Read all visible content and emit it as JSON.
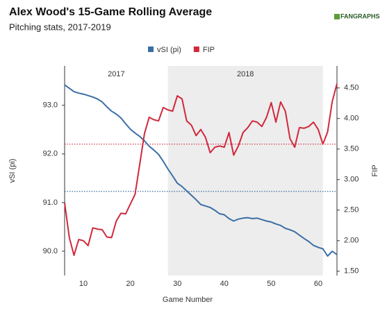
{
  "chart_data": {
    "type": "line",
    "title": "Alex Wood's 15-Game Rolling Average",
    "subtitle": "Pitching stats, 2017-2019",
    "logo_text": "FANGRAPHS",
    "xlabel": "Game Number",
    "ylabel": "vSI (pi)",
    "y2label": "FIP",
    "x": [
      6,
      7,
      8,
      9,
      10,
      11,
      12,
      13,
      14,
      15,
      16,
      17,
      18,
      19,
      20,
      21,
      22,
      23,
      24,
      25,
      26,
      27,
      28,
      29,
      30,
      31,
      32,
      33,
      34,
      35,
      36,
      37,
      38,
      39,
      40,
      41,
      42,
      43,
      44,
      45,
      46,
      47,
      48,
      49,
      50,
      51,
      52,
      53,
      54,
      55,
      56,
      57,
      58,
      59,
      60,
      61,
      62,
      63,
      64
    ],
    "series": [
      {
        "name": "vSI (pi)",
        "color": "#3a6ea5",
        "axis": "y",
        "values": [
          93.42,
          93.35,
          93.28,
          93.25,
          93.23,
          93.2,
          93.17,
          93.13,
          93.07,
          92.97,
          92.88,
          92.82,
          92.74,
          92.62,
          92.51,
          92.43,
          92.36,
          92.27,
          92.16,
          92.08,
          91.99,
          91.85,
          91.69,
          91.55,
          91.4,
          91.33,
          91.24,
          91.15,
          91.06,
          90.96,
          90.93,
          90.9,
          90.84,
          90.77,
          90.75,
          90.67,
          90.62,
          90.66,
          90.68,
          90.69,
          90.67,
          90.68,
          90.65,
          90.62,
          90.6,
          90.56,
          90.53,
          90.47,
          90.44,
          90.4,
          90.33,
          90.26,
          90.2,
          90.12,
          90.08,
          90.05,
          89.9,
          90.0,
          89.93
        ]
      },
      {
        "name": "FIP",
        "color": "#d0283b",
        "axis": "y2",
        "values": [
          2.62,
          2.05,
          1.76,
          2.02,
          2.0,
          1.92,
          2.21,
          2.19,
          2.18,
          2.06,
          2.05,
          2.32,
          2.45,
          2.44,
          2.6,
          2.76,
          3.25,
          3.75,
          4.02,
          3.98,
          3.96,
          4.18,
          4.14,
          4.12,
          4.37,
          4.32,
          3.96,
          3.89,
          3.72,
          3.82,
          3.69,
          3.44,
          3.53,
          3.55,
          3.53,
          3.77,
          3.4,
          3.55,
          3.77,
          3.85,
          3.96,
          3.94,
          3.87,
          4.02,
          4.26,
          3.94,
          4.27,
          4.12,
          3.67,
          3.53,
          3.85,
          3.84,
          3.87,
          3.94,
          3.82,
          3.58,
          3.78,
          4.28,
          4.57
        ]
      }
    ],
    "reference_lines": [
      {
        "axis": "y",
        "value": 91.23,
        "color": "#3a6ea5"
      },
      {
        "axis": "y2",
        "value": 3.58,
        "color": "#d0283b"
      }
    ],
    "shaded_region": {
      "x": [
        28,
        61
      ],
      "color": "#ededed"
    },
    "annotations": [
      {
        "text": "2017",
        "x": 17
      },
      {
        "text": "2018",
        "x": 44.5
      }
    ],
    "xlim": [
      6,
      64
    ],
    "xticks": [
      10,
      20,
      30,
      40,
      50,
      60
    ],
    "ylim": [
      89.5,
      93.81
    ],
    "yticks": [
      {
        "value": 90,
        "label": "90.0"
      },
      {
        "value": 91,
        "label": "91.0"
      },
      {
        "value": 92,
        "label": "92.0"
      },
      {
        "value": 93,
        "label": "93.0"
      }
    ],
    "y2lim": [
      1.43,
      4.86
    ],
    "y2ticks": [
      {
        "value": 1.5,
        "label": "1.50"
      },
      {
        "value": 2,
        "label": "2.00"
      },
      {
        "value": 2.5,
        "label": "2.50"
      },
      {
        "value": 3,
        "label": "3.00"
      },
      {
        "value": 3.5,
        "label": "3.50"
      },
      {
        "value": 4,
        "label": "4.00"
      },
      {
        "value": 4.5,
        "label": "4.50"
      }
    ],
    "legend": "top"
  }
}
